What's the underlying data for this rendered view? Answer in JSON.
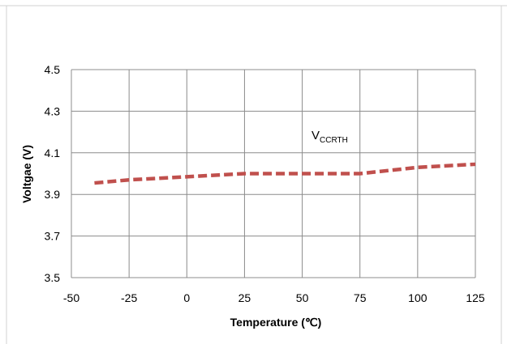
{
  "chart_data": {
    "type": "line",
    "title": "",
    "xlabel": "Temperature (℃)",
    "ylabel": "Voltgae (V)",
    "xlim": [
      -50,
      125
    ],
    "ylim": [
      3.5,
      4.5
    ],
    "x_ticks": [
      "-50",
      "-25",
      "0",
      "25",
      "50",
      "75",
      "100",
      "125"
    ],
    "y_ticks": [
      "3.5",
      "3.7",
      "3.9",
      "4.1",
      "4.3",
      "4.5"
    ],
    "grid": true,
    "annotation": {
      "main": "V",
      "subscript": "CCRTH"
    },
    "series": [
      {
        "x": [
          -40,
          -25,
          0,
          25,
          50,
          75,
          100,
          125
        ],
        "y": [
          3.955,
          3.97,
          3.985,
          4.0,
          4.0,
          4.0,
          4.03,
          4.045
        ],
        "color": "#c0504d",
        "style": "dashed"
      }
    ]
  }
}
